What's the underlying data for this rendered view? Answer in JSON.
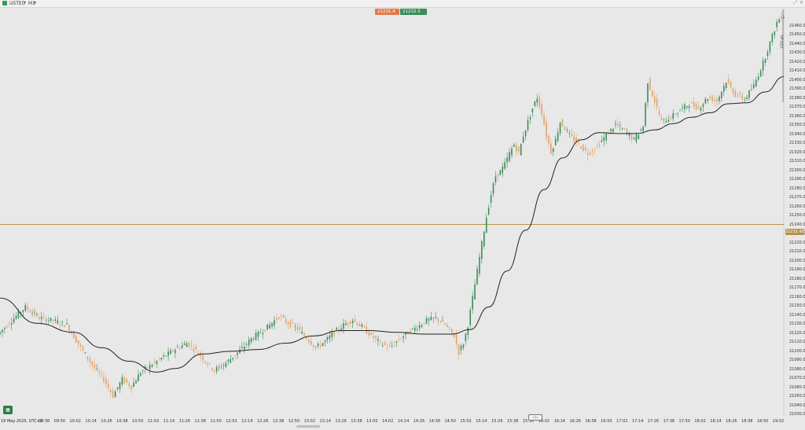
{
  "toolbar": {
    "symbol": "USTEC",
    "timeframe": "M1",
    "caret": "▾",
    "window_controls": [
      "⤢",
      "✕"
    ]
  },
  "order_panel": {
    "sell_price": "21231.4",
    "buy_price": "21232.5",
    "sell_color": "#e07a4b",
    "buy_color": "#3a8c5a"
  },
  "current_price": "21231.45",
  "range_label": "1320 pts",
  "navigator_label": "◁ ▷",
  "corner_button_icon": "calendar-icon",
  "colors": {
    "up_candle": "#3a8c5a",
    "down_candle": "#e0a36a",
    "moving_average": "#222222",
    "price_line": "#b7934a",
    "background": "#e8e8e8"
  },
  "chart_data": {
    "type": "candlestick",
    "date_label": "19 May 2025, UTC+2",
    "x_ticks": [
      "09:38",
      "09:50",
      "10:02",
      "10:14",
      "10:26",
      "10:38",
      "10:50",
      "11:02",
      "11:14",
      "11:26",
      "11:38",
      "11:50",
      "12:02",
      "12:14",
      "12:26",
      "12:38",
      "12:50",
      "13:02",
      "13:14",
      "13:26",
      "13:38",
      "13:50",
      "14:02",
      "14:14",
      "14:26",
      "14:38",
      "14:50",
      "15:02",
      "15:14",
      "15:26",
      "15:38",
      "15:50",
      "16:02",
      "16:14",
      "16:26",
      "16:38",
      "16:50",
      "17:02",
      "17:14",
      "17:26",
      "17:38",
      "17:50",
      "18:02",
      "18:14",
      "18:26",
      "18:38",
      "18:50",
      "19:02"
    ],
    "y_ticks": [
      "21460.0",
      "21450.0",
      "21440.0",
      "21430.0",
      "21420.0",
      "21410.0",
      "21400.0",
      "21390.0",
      "21380.0",
      "21370.0",
      "21360.0",
      "21350.0",
      "21340.0",
      "21330.0",
      "21320.0",
      "21310.0",
      "21300.0",
      "21290.0",
      "21280.0",
      "21270.0",
      "21260.0",
      "21250.0",
      "21240.0",
      "21230.0",
      "21220.0",
      "21210.0",
      "21200.0",
      "21190.0",
      "21180.0",
      "21170.0",
      "21160.0",
      "21150.0",
      "21140.0",
      "21130.0",
      "21120.0",
      "21110.0",
      "21100.0",
      "21090.0",
      "21080.0",
      "21070.0",
      "21060.0",
      "21050.0",
      "21040.0",
      "21030.0"
    ],
    "ylim": [
      21030,
      21465
    ],
    "price_path": [
      [
        0,
        21110
      ],
      [
        3,
        21125
      ],
      [
        6,
        21140
      ],
      [
        9,
        21128
      ],
      [
        12,
        21125
      ],
      [
        15,
        21120
      ],
      [
        18,
        21095
      ],
      [
        21,
        21072
      ],
      [
        23,
        21060
      ],
      [
        25,
        21042
      ],
      [
        27,
        21060
      ],
      [
        29,
        21052
      ],
      [
        31,
        21068
      ],
      [
        33,
        21075
      ],
      [
        36,
        21085
      ],
      [
        39,
        21095
      ],
      [
        41,
        21100
      ],
      [
        43,
        21092
      ],
      [
        45,
        21080
      ],
      [
        47,
        21070
      ],
      [
        49,
        21076
      ],
      [
        51,
        21085
      ],
      [
        53,
        21094
      ],
      [
        55,
        21105
      ],
      [
        57,
        21112
      ],
      [
        59,
        21120
      ],
      [
        61,
        21130
      ],
      [
        63,
        21122
      ],
      [
        65,
        21116
      ],
      [
        67,
        21106
      ],
      [
        69,
        21095
      ],
      [
        71,
        21102
      ],
      [
        73,
        21112
      ],
      [
        75,
        21120
      ],
      [
        77,
        21126
      ],
      [
        79,
        21118
      ],
      [
        81,
        21108
      ],
      [
        83,
        21100
      ],
      [
        85,
        21095
      ],
      [
        87,
        21104
      ],
      [
        89,
        21112
      ],
      [
        91,
        21118
      ],
      [
        93,
        21125
      ],
      [
        95,
        21128
      ],
      [
        97,
        21120
      ],
      [
        99,
        21108
      ],
      [
        100,
        21090
      ],
      [
        101,
        21100
      ],
      [
        102,
        21120
      ],
      [
        103,
        21150
      ],
      [
        104,
        21180
      ],
      [
        105,
        21210
      ],
      [
        106,
        21240
      ],
      [
        107,
        21265
      ],
      [
        108,
        21285
      ],
      [
        109,
        21290
      ],
      [
        110,
        21298
      ],
      [
        111,
        21310
      ],
      [
        112,
        21320
      ],
      [
        113,
        21310
      ],
      [
        114,
        21330
      ],
      [
        115,
        21345
      ],
      [
        116,
        21360
      ],
      [
        117,
        21372
      ],
      [
        118,
        21355
      ],
      [
        119,
        21330
      ],
      [
        120,
        21312
      ],
      [
        121,
        21325
      ],
      [
        122,
        21345
      ],
      [
        124,
        21330
      ],
      [
        126,
        21320
      ],
      [
        128,
        21310
      ],
      [
        130,
        21318
      ],
      [
        132,
        21330
      ],
      [
        134,
        21342
      ],
      [
        136,
        21335
      ],
      [
        138,
        21325
      ],
      [
        140,
        21340
      ],
      [
        141,
        21390
      ],
      [
        142,
        21375
      ],
      [
        143,
        21360
      ],
      [
        144,
        21345
      ],
      [
        146,
        21350
      ],
      [
        148,
        21358
      ],
      [
        150,
        21365
      ],
      [
        152,
        21360
      ],
      [
        154,
        21372
      ],
      [
        156,
        21368
      ],
      [
        158,
        21390
      ],
      [
        160,
        21375
      ],
      [
        162,
        21370
      ],
      [
        164,
        21385
      ],
      [
        166,
        21410
      ],
      [
        167,
        21425
      ],
      [
        168,
        21440
      ],
      [
        169,
        21455
      ],
      [
        170,
        21462
      ]
    ],
    "moving_average": [
      [
        0,
        21150
      ],
      [
        8,
        21122
      ],
      [
        16,
        21112
      ],
      [
        22,
        21095
      ],
      [
        28,
        21080
      ],
      [
        34,
        21068
      ],
      [
        38,
        21072
      ],
      [
        44,
        21088
      ],
      [
        50,
        21091
      ],
      [
        56,
        21093
      ],
      [
        62,
        21100
      ],
      [
        68,
        21108
      ],
      [
        74,
        21114
      ],
      [
        80,
        21114
      ],
      [
        86,
        21112
      ],
      [
        92,
        21110
      ],
      [
        98,
        21110
      ],
      [
        102,
        21115
      ],
      [
        106,
        21140
      ],
      [
        110,
        21180
      ],
      [
        114,
        21225
      ],
      [
        118,
        21270
      ],
      [
        122,
        21305
      ],
      [
        126,
        21325
      ],
      [
        130,
        21333
      ],
      [
        134,
        21332
      ],
      [
        138,
        21332
      ],
      [
        142,
        21336
      ],
      [
        146,
        21343
      ],
      [
        150,
        21350
      ],
      [
        154,
        21355
      ],
      [
        158,
        21365
      ],
      [
        162,
        21366
      ],
      [
        166,
        21378
      ],
      [
        170,
        21395
      ]
    ],
    "current_price": 21231.45
  }
}
